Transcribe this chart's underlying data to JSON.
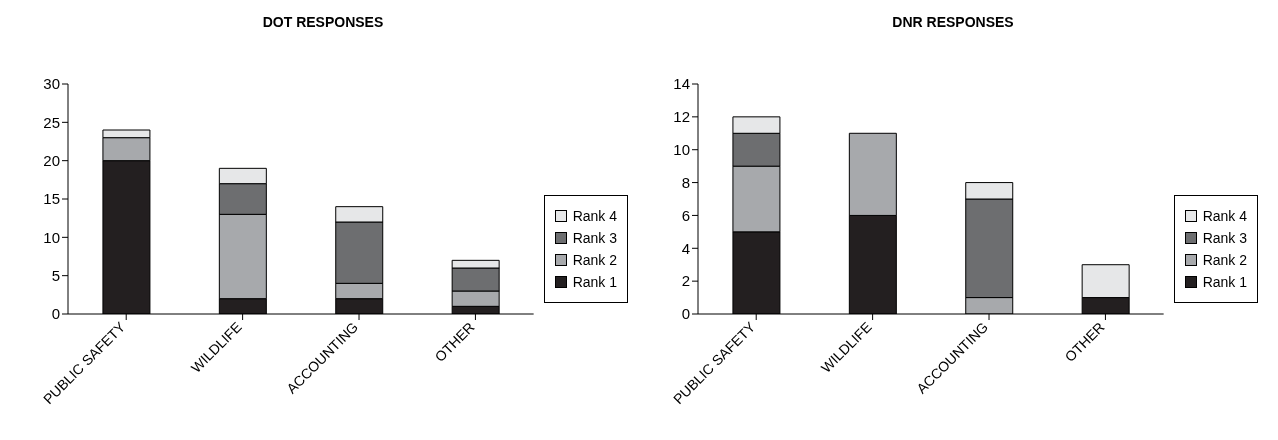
{
  "chart_data": [
    {
      "type": "bar",
      "title": "DOT RESPONSES",
      "categories": [
        "PUBLIC SAFETY",
        "WILDLIFE",
        "ACCOUNTING",
        "OTHER"
      ],
      "stacked": true,
      "ylim": [
        0,
        30
      ],
      "yticks": [
        0,
        5,
        10,
        15,
        20,
        25,
        30
      ],
      "grid": false,
      "legend": "right",
      "series": [
        {
          "name": "Rank 1",
          "color": "#231f20",
          "values": [
            20,
            2,
            2,
            1
          ]
        },
        {
          "name": "Rank 2",
          "color": "#a7a9ac",
          "values": [
            3,
            11,
            2,
            2
          ]
        },
        {
          "name": "Rank 3",
          "color": "#6d6e70",
          "values": [
            0,
            4,
            8,
            3
          ]
        },
        {
          "name": "Rank 4",
          "color": "#e6e7e8",
          "values": [
            1,
            2,
            2,
            1
          ]
        }
      ]
    },
    {
      "type": "bar",
      "title": "DNR RESPONSES",
      "categories": [
        "PUBLIC SAFETY",
        "WILDLIFE",
        "ACCOUNTING",
        "OTHER"
      ],
      "stacked": true,
      "ylim": [
        0,
        14
      ],
      "yticks": [
        0,
        2,
        4,
        6,
        8,
        10,
        12,
        14
      ],
      "grid": false,
      "legend": "right",
      "series": [
        {
          "name": "Rank 1",
          "color": "#231f20",
          "values": [
            5,
            6,
            0,
            1
          ]
        },
        {
          "name": "Rank 2",
          "color": "#a7a9ac",
          "values": [
            4,
            5,
            1,
            0
          ]
        },
        {
          "name": "Rank 3",
          "color": "#6d6e70",
          "values": [
            2,
            0,
            6,
            0
          ]
        },
        {
          "name": "Rank 4",
          "color": "#e6e7e8",
          "values": [
            1,
            0,
            1,
            2
          ]
        }
      ]
    }
  ]
}
